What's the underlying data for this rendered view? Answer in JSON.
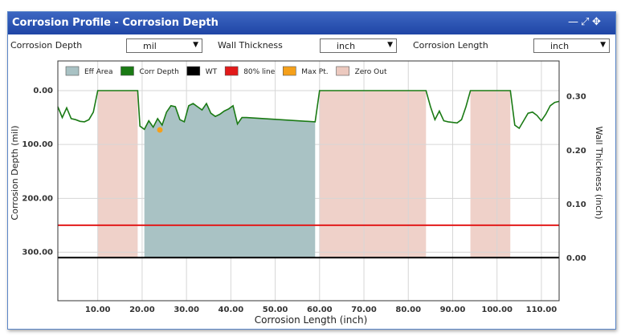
{
  "window": {
    "title": "Corrosion Profile - Corrosion Depth",
    "icons": [
      "minimize-icon",
      "expand-icon",
      "move-icon"
    ]
  },
  "controls": {
    "corrosion_depth_label": "Corrosion Depth",
    "corrosion_depth_unit": "mil",
    "wall_thickness_label": "Wall Thickness",
    "wall_thickness_unit": "inch",
    "corrosion_length_label": "Corrosion Length",
    "corrosion_length_unit": "inch"
  },
  "chart_data": {
    "type": "area",
    "xlabel": "Corrosion Length (inch)",
    "ylabel_left": "Corrosion Depth (mil)",
    "ylabel_right": "Wall Thickness (inch)",
    "x_ticks": [
      "10.00",
      "20.00",
      "30.00",
      "40.00",
      "50.00",
      "60.00",
      "70.00",
      "80.00",
      "90.00",
      "100.00",
      "110.00"
    ],
    "x_tick_values": [
      10,
      20,
      30,
      40,
      50,
      60,
      70,
      80,
      90,
      100,
      110
    ],
    "y_left_ticks": [
      "0.00",
      "100.00",
      "200.00",
      "300.00"
    ],
    "y_left_tick_values": [
      0,
      100,
      200,
      300
    ],
    "y_right_ticks": [
      "0.30",
      "0.20",
      "0.10",
      "0.00"
    ],
    "y_right_tick_values": [
      0.3,
      0.2,
      0.1,
      0.0
    ],
    "xlim": [
      1,
      114
    ],
    "y_left_lim": [
      -55,
      390
    ],
    "legend": {
      "placement": "top-left",
      "items": [
        {
          "label": "Eff Area",
          "color": "#a9c2c4"
        },
        {
          "label": "Corr Depth",
          "color": "#1a7a14"
        },
        {
          "label": "WT",
          "color": "#000000"
        },
        {
          "label": "80% line",
          "color": "#e21a1a"
        },
        {
          "label": "Max Pt.",
          "color": "#f5a01a"
        },
        {
          "label": "Zero Out",
          "color": "#ecc9bf"
        }
      ]
    },
    "zero_out_ranges": [
      [
        10,
        19
      ],
      [
        60,
        84
      ],
      [
        94,
        103
      ]
    ],
    "eff_area_range": [
      20,
      59
    ],
    "line_80pct": 250,
    "wt_depth": 310,
    "max_point": {
      "x": 24,
      "y": 73
    },
    "series": [
      {
        "name": "Corr Depth",
        "color": "#1a7a14",
        "x": [
          1,
          2,
          3,
          4,
          5,
          6,
          7,
          8,
          9,
          10,
          19,
          19.5,
          20.5,
          21.5,
          22.5,
          23.5,
          24.5,
          25.5,
          26.5,
          27.5,
          28.5,
          29.5,
          30.5,
          31.5,
          32.5,
          33.5,
          34.5,
          35.5,
          36.5,
          37.5,
          38.5,
          39.5,
          40.5,
          41.5,
          42.5,
          43.5,
          59,
          60,
          84,
          85,
          86,
          87,
          88,
          89,
          91,
          92,
          93,
          94,
          103,
          104,
          105,
          106,
          107,
          108,
          109,
          110,
          111,
          112,
          113,
          114
        ],
        "y": [
          30,
          50,
          32,
          52,
          54,
          57,
          58,
          54,
          40,
          0,
          0,
          66,
          72,
          56,
          68,
          52,
          64,
          40,
          28,
          30,
          54,
          58,
          28,
          24,
          30,
          36,
          24,
          42,
          48,
          44,
          38,
          34,
          28,
          62,
          50,
          50,
          58,
          0,
          0,
          30,
          54,
          38,
          56,
          58,
          60,
          54,
          30,
          0,
          0,
          64,
          70,
          56,
          42,
          40,
          46,
          56,
          44,
          28,
          22,
          20
        ]
      }
    ]
  }
}
